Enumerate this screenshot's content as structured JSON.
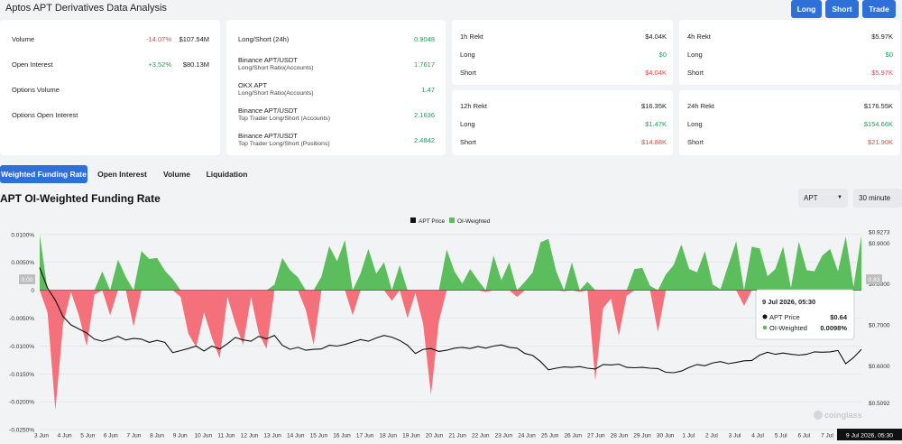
{
  "header": {
    "title": "Aptos APT Derivatives Data Analysis",
    "buttons": {
      "long": "Long",
      "short": "Short",
      "trade": "Trade"
    }
  },
  "overview": {
    "rows": [
      {
        "label": "Volume",
        "change": "-14.07%",
        "value": "$107.54M",
        "change_color": "red"
      },
      {
        "label": "Open Interest",
        "change": "+3.52%",
        "value": "$80.13M",
        "change_color": "green"
      },
      {
        "label": "Options Volume",
        "change": "",
        "value": ""
      },
      {
        "label": "Options Open Interest",
        "change": "",
        "value": ""
      }
    ]
  },
  "ratios": {
    "rows": [
      {
        "label": "Long/Short (24h)",
        "sub": "",
        "value": "0.9048"
      },
      {
        "label": "Binance APT/USDT",
        "sub": "Long/Short Ratio(Accounts)",
        "value": "1.7617"
      },
      {
        "label": "OKX APT",
        "sub": "Long/Short Ratio(Accounts)",
        "value": "1.47"
      },
      {
        "label": "Binance APT/USDT",
        "sub": "Top Trader Long/Short (Accounts)",
        "value": "2.1636"
      },
      {
        "label": "Binance APT/USDT",
        "sub": "Top Trader Long/Short (Positions)",
        "value": "2.4842"
      }
    ]
  },
  "rekt": [
    {
      "title": "1h Rekt",
      "total": "$4.04K",
      "long_label": "Long",
      "long": "$0",
      "short_label": "Short",
      "short": "$4.04K"
    },
    {
      "title": "4h Rekt",
      "total": "$5.97K",
      "long_label": "Long",
      "long": "$0",
      "short_label": "Short",
      "short": "$5.97K"
    },
    {
      "title": "12h Rekt",
      "total": "$16.35K",
      "long_label": "Long",
      "long": "$1.47K",
      "short_label": "Short",
      "short": "$14.88K"
    },
    {
      "title": "24h Rekt",
      "total": "$176.55K",
      "long_label": "Long",
      "long": "$154.66K",
      "short_label": "Short",
      "short": "$21.90K"
    }
  ],
  "tabs": [
    {
      "label": "Weighted Funding Rate",
      "active": true
    },
    {
      "label": "Open Interest",
      "active": false
    },
    {
      "label": "Volume",
      "active": false
    },
    {
      "label": "Liquidation",
      "active": false
    }
  ],
  "chart_controls": {
    "title": "APT OI-Weighted Funding Rate",
    "symbol": "APT",
    "interval": "30 minute"
  },
  "colors": {
    "accent": "#2e6fd8",
    "positive": "#5bbd5b",
    "negative": "#f4707a",
    "price_line": "#111111"
  },
  "chart_data": {
    "type": "area",
    "title": "",
    "legend": [
      "APT Price",
      "OI-Weighted"
    ],
    "legend_position": "top-center",
    "y_left": {
      "ticks": [
        "0.0100%",
        "0.0050%",
        "0",
        "-0.0050%",
        "-0.0100%",
        "-0.0150%",
        "-0.0200%",
        "-0.0250%"
      ],
      "range": [
        -0.025,
        0.01
      ]
    },
    "y_right": {
      "ticks": [
        "$0.9273",
        "$0.9000",
        "$0.8000",
        "$0.7000",
        "$0.6000",
        "$0.5092"
      ],
      "range": [
        0.5092,
        0.9273
      ]
    },
    "left_marker": "0.00",
    "right_marker": "0.83",
    "x_labels": [
      "3 Jun",
      "4 Jun",
      "5 Jun",
      "6 Jun",
      "7 Jun",
      "8 Jun",
      "9 Jun",
      "10 Jun",
      "11 Jun",
      "12 Jun",
      "13 Jun",
      "14 Jun",
      "15 Jun",
      "16 Jun",
      "17 Jun",
      "18 Jun",
      "19 Jun",
      "20 Jun",
      "21 Jun",
      "22 Jun",
      "23 Jun",
      "24 Jun",
      "25 Jun",
      "26 Jun",
      "27 Jun",
      "28 Jun",
      "29 Jun",
      "30 Jun",
      "1 Jul",
      "2 Jul",
      "3 Jul",
      "4 Jul",
      "5 Jul",
      "6 Jul",
      "7 Jul"
    ],
    "x_current_label": "9 Jul 2026, 05:30",
    "funding_rate_pct": [
      0.01,
      -0.004,
      -0.0215,
      -0.006,
      -0.0003,
      -0.0045,
      -0.01,
      -0.0008,
      0.0034,
      -0.0045,
      0.0055,
      0.0024,
      -0.0065,
      0.007,
      0.0056,
      0.0058,
      0.0035,
      0.002,
      -0.0012,
      -0.0078,
      -0.0102,
      -0.004,
      -0.0085,
      -0.0122,
      -0.0012,
      -0.006,
      -0.0098,
      -0.0012,
      -0.0078,
      -0.0105,
      0.001,
      0.0058,
      0.0036,
      0.0023,
      -0.0035,
      -0.0098,
      0.0024,
      0.0079,
      0.0052,
      0.009,
      -0.0045,
      0.003,
      0.0074,
      0.003,
      0.005,
      -0.0019,
      0.0045,
      -0.005,
      -0.0005,
      -0.006,
      -0.0188,
      -0.0056,
      0.0073,
      0.0034,
      0.0012,
      0.0038,
      0.0018,
      -0.0003,
      0.0062,
      0.0018,
      0.005,
      -0.0012,
      0.0015,
      0.0032,
      0.0086,
      0.0092,
      0.0034,
      -0.0002,
      0.005,
      -0.0003,
      0.0015,
      -0.0162,
      -0.0032,
      -0.0015,
      -0.0082,
      -0.001,
      0.0038,
      0.004,
      0.0008,
      -0.0075,
      0.0028,
      0.0045,
      0.0082,
      0.0038,
      0.0032,
      0.007,
      0.001,
      0.0002,
      0.0045,
      0.0088,
      -0.0028,
      0.0078,
      0.0075,
      0.0025,
      0.0038,
      0.0078,
      0.0004,
      0.0087,
      0.0036,
      0.0034,
      0.0062,
      0.0074,
      0.0034,
      0.0096,
      0.0006,
      0.0098
    ],
    "apt_price": [
      0.84,
      0.79,
      0.76,
      0.72,
      0.7,
      0.69,
      0.68,
      0.665,
      0.66,
      0.665,
      0.672,
      0.663,
      0.667,
      0.665,
      0.657,
      0.662,
      0.657,
      0.632,
      0.637,
      0.642,
      0.648,
      0.636,
      0.648,
      0.641,
      0.654,
      0.669,
      0.663,
      0.66,
      0.672,
      0.666,
      0.674,
      0.65,
      0.64,
      0.645,
      0.638,
      0.64,
      0.641,
      0.65,
      0.648,
      0.652,
      0.658,
      0.664,
      0.66,
      0.668,
      0.674,
      0.67,
      0.662,
      0.65,
      0.63,
      0.64,
      0.642,
      0.635,
      0.638,
      0.643,
      0.645,
      0.642,
      0.647,
      0.643,
      0.648,
      0.651,
      0.645,
      0.643,
      0.63,
      0.625,
      0.61,
      0.59,
      0.594,
      0.597,
      0.596,
      0.598,
      0.594,
      0.592,
      0.603,
      0.602,
      0.604,
      0.596,
      0.595,
      0.596,
      0.594,
      0.593,
      0.584,
      0.583,
      0.587,
      0.596,
      0.603,
      0.6,
      0.607,
      0.61,
      0.605,
      0.608,
      0.612,
      0.613,
      0.626,
      0.633,
      0.628,
      0.631,
      0.628,
      0.626,
      0.628,
      0.634,
      0.633,
      0.634,
      0.6375,
      0.605,
      0.62,
      0.64
    ],
    "tooltip": {
      "date": "9 Jul 2026, 05:30",
      "price_label": "APT Price",
      "price_value": "$0.64",
      "rate_label": "OI-Weighted",
      "rate_value": "0.0098%"
    },
    "watermark": "coinglass"
  }
}
